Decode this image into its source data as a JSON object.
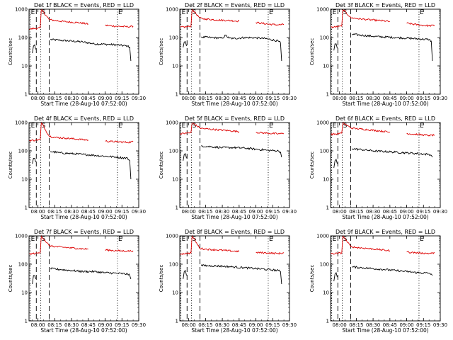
{
  "figure": {
    "shared": {
      "type": "line",
      "y_scale": "log",
      "ylim": [
        1,
        1000
      ],
      "y_ticks": [
        1,
        10,
        100,
        1000
      ],
      "y_tick_labels": [
        "1",
        "10",
        "100",
        "1000"
      ],
      "ylabel": "Counts/sec",
      "xlim": [
        "07:52:00",
        "09:30:00"
      ],
      "x_ticks": [
        "08:00",
        "08:15",
        "08:30",
        "08:45",
        "09:00",
        "09:15",
        "09:30"
      ],
      "xlabel": "Start Time (28-Aug-10 07:52:00)",
      "series_note": "BLACK = Events, RED = LLD",
      "colors": {
        "events": "#000000",
        "lld": "#dd0000"
      },
      "markers": [
        {
          "label": "E",
          "time": "07:53:00",
          "style": "dotted"
        },
        {
          "label": "S",
          "time": "08:02:30",
          "style": "dotted"
        },
        {
          "label": "",
          "time": "07:58:30",
          "style": "dashed"
        },
        {
          "label": "",
          "time": "08:10:00",
          "style": "dashed"
        },
        {
          "label": "E",
          "time": "09:11:00",
          "style": "dotted"
        }
      ]
    }
  },
  "chart_data": [
    {
      "type": "line",
      "title": "Det 1f BLACK = Events, RED = LLD",
      "series": [
        {
          "name": "Events",
          "color": "#000000",
          "x": [
            "07:55",
            "07:56",
            "07:57",
            "07:58",
            "08:11",
            "08:20",
            "08:30",
            "08:40",
            "08:50",
            "09:00",
            "09:10",
            "09:20",
            "09:22",
            "09:23"
          ],
          "values": [
            28,
            50,
            55,
            38,
            85,
            80,
            75,
            70,
            60,
            58,
            55,
            50,
            45,
            15
          ]
        },
        {
          "name": "LLD",
          "color": "#dd0000",
          "x": [
            "07:52",
            "07:58",
            "08:02",
            "08:03",
            "08:10",
            "08:15",
            "08:25",
            "08:35",
            "08:45",
            "09:00",
            "09:10",
            "09:20",
            "09:25"
          ],
          "values": [
            200,
            210,
            220,
            1000,
            430,
            400,
            360,
            340,
            300,
            270,
            250,
            240,
            250
          ]
        }
      ]
    },
    {
      "type": "line",
      "title": "Det 2f BLACK = Events, RED = LLD",
      "series": [
        {
          "name": "Events",
          "color": "#000000",
          "x": [
            "07:55",
            "07:56",
            "07:57",
            "07:58",
            "08:11",
            "08:20",
            "08:30",
            "08:33",
            "08:36",
            "08:40",
            "08:50",
            "09:00",
            "09:10",
            "09:20",
            "09:22",
            "09:23"
          ],
          "values": [
            45,
            70,
            72,
            50,
            105,
            100,
            95,
            120,
            95,
            92,
            100,
            98,
            90,
            75,
            65,
            15
          ]
        },
        {
          "name": "LLD",
          "color": "#dd0000",
          "x": [
            "07:52",
            "07:58",
            "08:02",
            "08:03",
            "08:10",
            "08:15",
            "08:25",
            "08:35",
            "08:45",
            "09:00",
            "09:10",
            "09:20",
            "09:25"
          ],
          "values": [
            230,
            240,
            250,
            1000,
            480,
            450,
            420,
            400,
            380,
            340,
            300,
            280,
            290
          ]
        }
      ]
    },
    {
      "type": "line",
      "title": "Det 3f BLACK = Events, RED = LLD",
      "series": [
        {
          "name": "Events",
          "color": "#000000",
          "x": [
            "07:55",
            "07:56",
            "07:57",
            "07:58",
            "08:11",
            "08:20",
            "08:30",
            "08:40",
            "08:50",
            "09:00",
            "09:10",
            "09:20",
            "09:22",
            "09:23"
          ],
          "values": [
            35,
            60,
            60,
            42,
            130,
            120,
            110,
            105,
            100,
            95,
            90,
            85,
            75,
            15
          ]
        },
        {
          "name": "LLD",
          "color": "#dd0000",
          "x": [
            "07:52",
            "07:58",
            "08:02",
            "08:03",
            "08:10",
            "08:15",
            "08:25",
            "08:35",
            "08:45",
            "09:00",
            "09:10",
            "09:20",
            "09:25"
          ],
          "values": [
            230,
            240,
            250,
            1000,
            500,
            470,
            430,
            400,
            370,
            320,
            280,
            260,
            270
          ]
        }
      ]
    },
    {
      "type": "line",
      "title": "Det 4f BLACK = Events, RED = LLD",
      "series": [
        {
          "name": "Events",
          "color": "#000000",
          "x": [
            "07:55",
            "07:56",
            "07:57",
            "07:58",
            "08:11",
            "08:20",
            "08:30",
            "08:40",
            "08:50",
            "09:00",
            "09:10",
            "09:20",
            "09:22",
            "09:23"
          ],
          "values": [
            35,
            55,
            55,
            40,
            95,
            85,
            80,
            75,
            70,
            65,
            60,
            55,
            45,
            10
          ]
        },
        {
          "name": "LLD",
          "color": "#dd0000",
          "x": [
            "07:52",
            "07:58",
            "08:02",
            "08:03",
            "08:10",
            "08:15",
            "08:25",
            "08:35",
            "08:45",
            "09:00",
            "09:10",
            "09:20",
            "09:25"
          ],
          "values": [
            230,
            240,
            250,
            1000,
            330,
            300,
            280,
            260,
            240,
            220,
            210,
            200,
            210
          ]
        }
      ]
    },
    {
      "type": "line",
      "title": "Det 5f BLACK = Events, RED = LLD",
      "series": [
        {
          "name": "Events",
          "color": "#000000",
          "x": [
            "07:55",
            "07:56",
            "07:57",
            "07:58",
            "08:11",
            "08:20",
            "08:30",
            "08:40",
            "08:50",
            "09:00",
            "09:10",
            "09:20",
            "09:22",
            "09:23"
          ],
          "values": [
            45,
            75,
            80,
            55,
            150,
            140,
            130,
            130,
            125,
            115,
            105,
            100,
            90,
            60
          ]
        },
        {
          "name": "LLD",
          "color": "#dd0000",
          "x": [
            "07:52",
            "07:58",
            "08:02",
            "08:03",
            "08:10",
            "08:15",
            "08:25",
            "08:35",
            "08:45",
            "09:00",
            "09:10",
            "09:20",
            "09:25"
          ],
          "values": [
            400,
            420,
            440,
            1000,
            640,
            600,
            560,
            520,
            480,
            450,
            420,
            400,
            410
          ]
        }
      ]
    },
    {
      "type": "line",
      "title": "Det 6f BLACK = Events, RED = LLD",
      "series": [
        {
          "name": "Events",
          "color": "#000000",
          "x": [
            "07:55",
            "07:56",
            "07:57",
            "07:58",
            "08:11",
            "08:20",
            "08:30",
            "08:40",
            "08:50",
            "09:00",
            "09:10",
            "09:20",
            "09:22",
            "09:23"
          ],
          "values": [
            25,
            45,
            50,
            35,
            120,
            110,
            100,
            95,
            90,
            85,
            80,
            75,
            70,
            60
          ]
        },
        {
          "name": "LLD",
          "color": "#dd0000",
          "x": [
            "07:52",
            "07:58",
            "08:02",
            "08:03",
            "08:10",
            "08:15",
            "08:25",
            "08:35",
            "08:45",
            "09:00",
            "09:10",
            "09:20",
            "09:25"
          ],
          "values": [
            380,
            400,
            420,
            1000,
            650,
            610,
            560,
            510,
            460,
            410,
            380,
            350,
            360
          ]
        }
      ]
    },
    {
      "type": "line",
      "title": "Det 7f BLACK = Events, RED = LLD",
      "series": [
        {
          "name": "Events",
          "color": "#000000",
          "x": [
            "07:55",
            "07:56",
            "07:57",
            "07:58",
            "08:11",
            "08:20",
            "08:30",
            "08:40",
            "08:50",
            "09:00",
            "09:10",
            "09:20",
            "09:22",
            "09:23"
          ],
          "values": [
            20,
            40,
            40,
            30,
            70,
            65,
            60,
            55,
            55,
            50,
            48,
            45,
            40,
            30
          ]
        },
        {
          "name": "LLD",
          "color": "#dd0000",
          "x": [
            "07:52",
            "07:58",
            "08:02",
            "08:03",
            "08:10",
            "08:15",
            "08:25",
            "08:35",
            "08:45",
            "09:00",
            "09:10",
            "09:20",
            "09:25"
          ],
          "values": [
            230,
            240,
            250,
            1000,
            450,
            420,
            390,
            360,
            340,
            320,
            300,
            290,
            300
          ]
        }
      ]
    },
    {
      "type": "line",
      "title": "Det 8f BLACK = Events, RED = LLD",
      "series": [
        {
          "name": "Events",
          "color": "#000000",
          "x": [
            "07:55",
            "07:56",
            "07:57",
            "07:58",
            "08:11",
            "08:20",
            "08:30",
            "08:40",
            "08:50",
            "09:00",
            "09:10",
            "09:20",
            "09:22",
            "09:23"
          ],
          "values": [
            30,
            55,
            60,
            40,
            90,
            88,
            85,
            80,
            75,
            70,
            65,
            60,
            55,
            20
          ]
        },
        {
          "name": "LLD",
          "color": "#dd0000",
          "x": [
            "07:52",
            "07:58",
            "08:02",
            "08:03",
            "08:10",
            "08:15",
            "08:25",
            "08:35",
            "08:45",
            "09:00",
            "09:10",
            "09:20",
            "09:25"
          ],
          "values": [
            230,
            240,
            250,
            1000,
            360,
            340,
            320,
            300,
            280,
            260,
            250,
            240,
            250
          ]
        }
      ]
    },
    {
      "type": "line",
      "title": "Det 9f BLACK = Events, RED = LLD",
      "series": [
        {
          "name": "Events",
          "color": "#000000",
          "x": [
            "07:55",
            "07:56",
            "07:57",
            "07:58",
            "08:11",
            "08:20",
            "08:30",
            "08:40",
            "08:50",
            "09:00",
            "09:10",
            "09:20",
            "09:22",
            "09:23"
          ],
          "values": [
            25,
            45,
            50,
            35,
            80,
            75,
            70,
            65,
            60,
            55,
            50,
            48,
            45,
            40
          ]
        },
        {
          "name": "LLD",
          "color": "#dd0000",
          "x": [
            "07:52",
            "07:58",
            "08:02",
            "08:03",
            "08:10",
            "08:15",
            "08:25",
            "08:35",
            "08:45",
            "09:00",
            "09:10",
            "09:20",
            "09:25"
          ],
          "values": [
            230,
            240,
            250,
            1000,
            420,
            390,
            360,
            330,
            300,
            270,
            250,
            240,
            250
          ]
        }
      ]
    }
  ]
}
